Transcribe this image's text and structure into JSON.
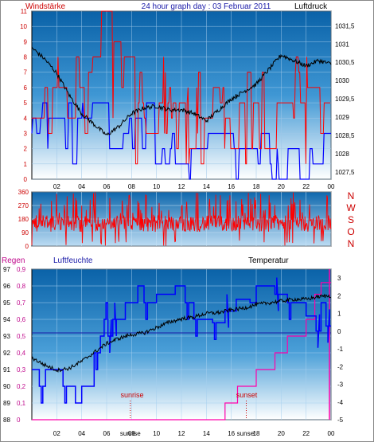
{
  "header": {
    "left": "Windstärke",
    "center": "24 hour graph day : 03 Februar 2011",
    "right": "Luftdruck"
  },
  "compass_letters": [
    "N",
    "W",
    "S",
    "O",
    "N"
  ],
  "panel3_labels": {
    "regen": "Regen",
    "luftfeuchte": "Luftfeuchte",
    "temperatur": "Temperatur",
    "sunrise": "sunrise",
    "sunset": "sunset"
  },
  "chart_data": [
    {
      "type": "line",
      "name": "wind-pressure",
      "series": [
        {
          "name": "Windstärke",
          "color": "#ff0000"
        },
        {
          "name": "Luftdruck",
          "color": "#000000"
        },
        {
          "color": "#0000ff"
        }
      ],
      "x_ticks": [
        "02",
        "04",
        "06",
        "08",
        "10",
        "12",
        "14",
        "16",
        "18",
        "20",
        "22",
        "00"
      ],
      "y_left_ticks": [
        "0",
        "1",
        "2",
        "3",
        "4",
        "5",
        "6",
        "7",
        "8",
        "9",
        "10",
        "11"
      ],
      "y_left_range": [
        0,
        11
      ],
      "y_right_ticks": [
        "1027,5",
        "1028",
        "1028,5",
        "1029",
        "1029,5",
        "1030",
        "1030,5",
        "1031",
        "1031,5"
      ],
      "y_right_range": [
        1027.3,
        1031.9
      ],
      "pressure_keypoints": [
        [
          0,
          1030.9
        ],
        [
          1,
          1030.6
        ],
        [
          2,
          1030.2
        ],
        [
          3,
          1029.6
        ],
        [
          4,
          1029.1
        ],
        [
          5,
          1028.8
        ],
        [
          6,
          1028.5
        ],
        [
          7,
          1028.75
        ],
        [
          8,
          1029.1
        ],
        [
          9,
          1029.25
        ],
        [
          10,
          1029.3
        ],
        [
          11,
          1029.2
        ],
        [
          12,
          1029.2
        ],
        [
          13,
          1029.1
        ],
        [
          14,
          1028.9
        ],
        [
          15,
          1029.2
        ],
        [
          16,
          1029.5
        ],
        [
          17,
          1029.7
        ],
        [
          18,
          1029.9
        ],
        [
          19,
          1030.3
        ],
        [
          20,
          1030.7
        ],
        [
          21,
          1030.55
        ],
        [
          22,
          1030.4
        ],
        [
          23,
          1030.55
        ],
        [
          24,
          1030.45
        ]
      ]
    },
    {
      "type": "line",
      "name": "wind-direction",
      "series": [
        {
          "color": "#ff0000"
        }
      ],
      "y_ticks": [
        "0",
        "90",
        "180",
        "270",
        "360"
      ],
      "y_range": [
        0,
        360
      ]
    },
    {
      "type": "line",
      "name": "humidity-temperature-rain",
      "series": [
        {
          "name": "Luftfeuchte",
          "color": "#0000ff"
        },
        {
          "name": "Temperatur",
          "color": "#000000"
        },
        {
          "name": "Regen",
          "color": "#ff00aa"
        }
      ],
      "x_ticks": [
        "02",
        "04",
        "06",
        "sunrise",
        "08",
        "10",
        "12",
        "14",
        "16",
        "sunset",
        "18",
        "20",
        "22",
        "00"
      ],
      "humidity_ticks": [
        "88",
        "89",
        "90",
        "91",
        "92",
        "93",
        "94",
        "95",
        "96",
        "97"
      ],
      "humidity_range": [
        88,
        97
      ],
      "rain_ticks": [
        "0",
        "0,1",
        "0,2",
        "0,3",
        "0,4",
        "0,5",
        "0,6",
        "0,7",
        "0,8",
        "0,9"
      ],
      "rain_range": [
        0,
        0.9
      ],
      "temperature_ticks": [
        "3",
        "2",
        "1",
        "0",
        "-1",
        "-2",
        "-3",
        "-4",
        "-5"
      ],
      "temperature_range": [
        -5,
        3.5
      ],
      "humidity_steps": [
        [
          0,
          91
        ],
        [
          0.6,
          90
        ],
        [
          1.1,
          91
        ],
        [
          2.5,
          90
        ],
        [
          3.5,
          89
        ],
        [
          4,
          90
        ],
        [
          5,
          92
        ],
        [
          5.5,
          93
        ],
        [
          5.8,
          94
        ],
        [
          6.1,
          93
        ],
        [
          6.5,
          94
        ],
        [
          7.5,
          95
        ],
        [
          8.5,
          96
        ],
        [
          9,
          95
        ],
        [
          10,
          95.5
        ],
        [
          11.5,
          96
        ],
        [
          12.3,
          95
        ],
        [
          13,
          94
        ],
        [
          14.5,
          93.8
        ],
        [
          15.5,
          94.5
        ],
        [
          16.4,
          95.2
        ],
        [
          17.5,
          95
        ],
        [
          18,
          96
        ],
        [
          19.5,
          95.5
        ],
        [
          20.5,
          95
        ],
        [
          22,
          94.2
        ],
        [
          22.8,
          93.3
        ],
        [
          23.2,
          95
        ],
        [
          23.6,
          93.6
        ]
      ],
      "temperature_keypoints": [
        [
          0,
          -1.5
        ],
        [
          1,
          -1.9
        ],
        [
          2,
          -2.2
        ],
        [
          3,
          -2.1
        ],
        [
          4,
          -1.7
        ],
        [
          5,
          -1.2
        ],
        [
          6,
          -0.7
        ],
        [
          7,
          -0.4
        ],
        [
          8,
          -0.2
        ],
        [
          9,
          -0.1
        ],
        [
          10,
          0.2
        ],
        [
          11,
          0.5
        ],
        [
          12,
          0.7
        ],
        [
          13,
          0.8
        ],
        [
          14,
          1
        ],
        [
          15,
          1.05
        ],
        [
          16,
          1.2
        ],
        [
          17,
          1.3
        ],
        [
          18,
          1.5
        ],
        [
          19,
          1.6
        ],
        [
          20,
          1.7
        ],
        [
          21,
          1.8
        ],
        [
          22,
          1.8
        ],
        [
          23,
          1.95
        ],
        [
          24,
          2
        ]
      ],
      "rain_steps": [
        [
          0,
          0
        ],
        [
          15.5,
          0
        ],
        [
          15.5,
          0.1
        ],
        [
          16.5,
          0.1
        ],
        [
          16.5,
          0.2
        ],
        [
          18,
          0.2
        ],
        [
          18,
          0.3
        ],
        [
          19.5,
          0.3
        ],
        [
          19.5,
          0.4
        ],
        [
          20.5,
          0.4
        ],
        [
          20.5,
          0.5
        ],
        [
          22,
          0.5
        ],
        [
          22,
          0.6
        ],
        [
          22.7,
          0.6
        ],
        [
          22.7,
          0.75
        ],
        [
          23.2,
          0.75
        ],
        [
          23.2,
          0.82
        ],
        [
          24,
          0.82
        ]
      ],
      "sunrise_hour": 7.9,
      "sunset_hour": 17.2
    }
  ]
}
